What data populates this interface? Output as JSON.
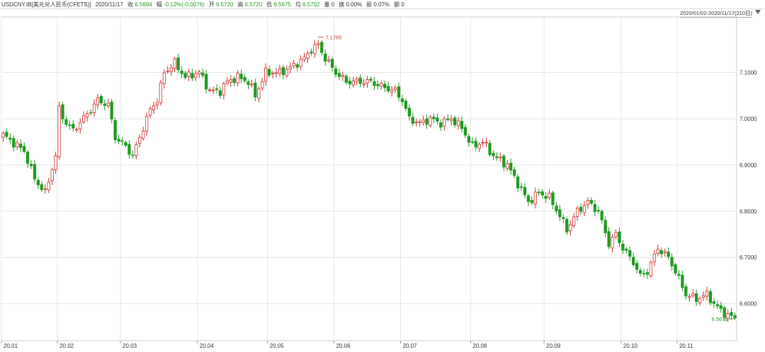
{
  "info": {
    "symbol": "USDCNY.IB[美元兑人民币(CFETS)]",
    "date": "2020/11/17",
    "close_label": "收",
    "close_value": "6.5694",
    "change_label": "幅",
    "change_value": "-0.12%(-0.0076)",
    "open_label": "开",
    "open_value": "6.5720",
    "high_label": "高",
    "high_value": "6.5720",
    "low_label": "低",
    "low_value": "6.5675",
    "avg_label": "均",
    "avg_value": "6.5702",
    "vol_label": "量",
    "vol_value": "0",
    "turnover_label": "换",
    "turnover_value": "0.00%",
    "amp_label": "振",
    "amp_value": "0.07%",
    "amount_label": "额",
    "amount_value": "0"
  },
  "range_label": "2020/01/02-2020/11/17(210日)",
  "colors": {
    "up": "#d12b2b",
    "down": "#1f9a1f",
    "grid": "#e6e6e6",
    "text": "#333333"
  },
  "chart_data": {
    "type": "candlestick",
    "ylim": [
      6.52,
      7.22
    ],
    "yticks": [
      6.6,
      6.7,
      6.8,
      6.9,
      7.0,
      7.1
    ],
    "ytick_labels": [
      "6.6000",
      "6.7000",
      "6.8000",
      "6.9000",
      "7.0000",
      "7.1000"
    ],
    "xtick_labels": [
      "20.01",
      "20.02",
      "20.03",
      "20.04",
      "20.05",
      "20.06",
      "20.07",
      "20.08",
      "20.09",
      "20.10",
      "20.11"
    ],
    "xtick_index": [
      0,
      16,
      34,
      56,
      76,
      95,
      114,
      134,
      155,
      177,
      193
    ],
    "max_label": "7.1765",
    "min_label": "6.5675",
    "anchors": [
      [
        0,
        6.965
      ],
      [
        6,
        6.93
      ],
      [
        9,
        6.87
      ],
      [
        12,
        6.84
      ],
      [
        15,
        6.92
      ],
      [
        16,
        7.02
      ],
      [
        18,
        6.99
      ],
      [
        20,
        6.975
      ],
      [
        24,
        7.01
      ],
      [
        27,
        7.04
      ],
      [
        30,
        7.03
      ],
      [
        32,
        6.96
      ],
      [
        35,
        6.94
      ],
      [
        37,
        6.92
      ],
      [
        40,
        6.98
      ],
      [
        42,
        7.02
      ],
      [
        44,
        7.04
      ],
      [
        46,
        7.1
      ],
      [
        49,
        7.12
      ],
      [
        52,
        7.09
      ],
      [
        56,
        7.1
      ],
      [
        59,
        7.06
      ],
      [
        62,
        7.06
      ],
      [
        64,
        7.08
      ],
      [
        67,
        7.09
      ],
      [
        70,
        7.08
      ],
      [
        72,
        7.05
      ],
      [
        75,
        7.1
      ],
      [
        79,
        7.1
      ],
      [
        82,
        7.11
      ],
      [
        86,
        7.13
      ],
      [
        88,
        7.15
      ],
      [
        90,
        7.16
      ],
      [
        92,
        7.13
      ],
      [
        95,
        7.1
      ],
      [
        98,
        7.08
      ],
      [
        101,
        7.08
      ],
      [
        105,
        7.08
      ],
      [
        108,
        7.07
      ],
      [
        112,
        7.06
      ],
      [
        114,
        7.04
      ],
      [
        116,
        7.0
      ],
      [
        119,
        6.99
      ],
      [
        122,
        7.0
      ],
      [
        125,
        6.99
      ],
      [
        128,
        7.0
      ],
      [
        131,
        6.98
      ],
      [
        134,
        6.94
      ],
      [
        137,
        6.95
      ],
      [
        140,
        6.92
      ],
      [
        144,
        6.9
      ],
      [
        147,
        6.86
      ],
      [
        150,
        6.82
      ],
      [
        153,
        6.84
      ],
      [
        156,
        6.83
      ],
      [
        159,
        6.79
      ],
      [
        161,
        6.76
      ],
      [
        164,
        6.8
      ],
      [
        167,
        6.82
      ],
      [
        170,
        6.8
      ],
      [
        173,
        6.73
      ],
      [
        175,
        6.75
      ],
      [
        177,
        6.72
      ],
      [
        180,
        6.69
      ],
      [
        182,
        6.66
      ],
      [
        184,
        6.67
      ],
      [
        187,
        6.72
      ],
      [
        190,
        6.7
      ],
      [
        192,
        6.67
      ],
      [
        195,
        6.62
      ],
      [
        198,
        6.61
      ],
      [
        201,
        6.62
      ],
      [
        203,
        6.6
      ],
      [
        205,
        6.585
      ],
      [
        207,
        6.575
      ],
      [
        209,
        6.5694
      ]
    ]
  }
}
